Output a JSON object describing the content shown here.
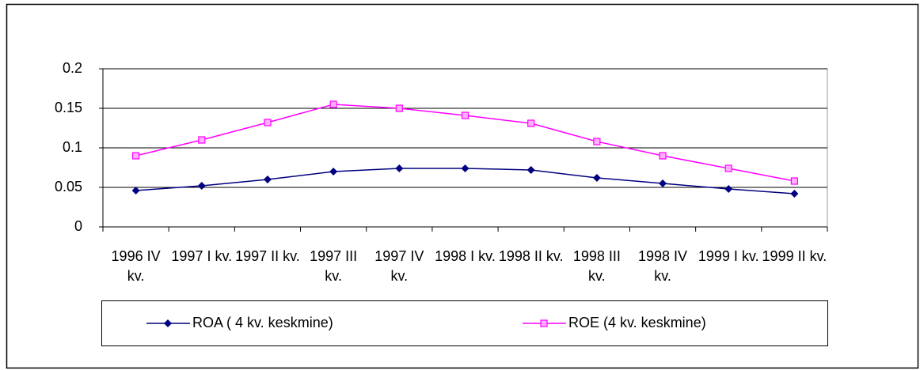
{
  "chart_data": {
    "type": "line",
    "categories": [
      "1996 IV kv.",
      "1997 I kv.",
      "1997 II kv.",
      "1997 III kv.",
      "1997 IV kv.",
      "1998 I kv.",
      "1998 II kv.",
      "1998 III kv.",
      "1998 IV kv.",
      "1999 I kv.",
      "1999 II kv."
    ],
    "series": [
      {
        "name": "ROA ( 4 kv. keskmine)",
        "color": "#000080",
        "marker": "diamond",
        "values": [
          0.046,
          0.052,
          0.06,
          0.07,
          0.074,
          0.074,
          0.072,
          0.062,
          0.055,
          0.048,
          0.042
        ]
      },
      {
        "name": "ROE (4 kv. keskmine)",
        "color": "#ff00ff",
        "marker": "square",
        "values": [
          0.09,
          0.11,
          0.132,
          0.155,
          0.15,
          0.141,
          0.131,
          0.108,
          0.09,
          0.074,
          0.058
        ]
      }
    ],
    "ylim": [
      0,
      0.2
    ],
    "yticks": [
      0,
      0.05,
      0.1,
      0.15,
      0.2
    ],
    "grid": true,
    "legend": "bottom"
  }
}
